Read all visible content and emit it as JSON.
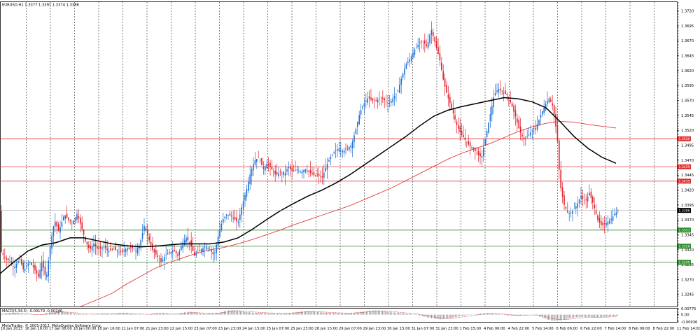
{
  "header": {
    "symbol_info": "EURUSD,H1  1.3377 1.3391 1.3374 1.3386",
    "indicator_info": "MACD(5,34,5) -0.00179 -0.00246",
    "copyright": "MetaTrader, © 2001-2013, MetaQuotes Software Corp."
  },
  "colors": {
    "bull": "#1e6fd6",
    "bear": "#e0202a",
    "ma_slow": "#e33b3b",
    "ma_fast": "#000000",
    "resistance": "#e03030",
    "support": "#2e8a2e",
    "grid": "#000000",
    "price_tag": "#000000",
    "macd_bar": "#555555",
    "macd_signal": "#e03030"
  },
  "price_axis": {
    "min": 1.3225,
    "max": 1.3735,
    "ticks": [
      "1.3720",
      "1.3695",
      "1.3670",
      "1.3645",
      "1.3620",
      "1.3595",
      "1.3570",
      "1.3545",
      "1.3520",
      "1.3495",
      "1.3470",
      "1.3445",
      "1.3420",
      "1.3395",
      "1.3370",
      "1.3345",
      "1.3320",
      "1.3295",
      "1.3270",
      "1.3245"
    ],
    "tick_values": [
      1.372,
      1.3695,
      1.367,
      1.3645,
      1.362,
      1.3595,
      1.357,
      1.3545,
      1.352,
      1.3495,
      1.347,
      1.3445,
      1.342,
      1.3395,
      1.337,
      1.3345,
      1.332,
      1.3295,
      1.327,
      1.3245
    ],
    "current_price": "1.3386",
    "current_value": 1.3386
  },
  "horizontal_levels": [
    {
      "label": "1.3506",
      "value": 1.3506,
      "kind": "resistance"
    },
    {
      "label": "1.3459",
      "value": 1.3459,
      "kind": "resistance"
    },
    {
      "label": "1.3435",
      "value": 1.3435,
      "kind": "resistance"
    },
    {
      "label": "1.3353",
      "value": 1.3353,
      "kind": "support"
    },
    {
      "label": "1.3326",
      "value": 1.3326,
      "kind": "support"
    },
    {
      "label": "1.3299",
      "value": 1.3299,
      "kind": "support"
    }
  ],
  "macd_axis": {
    "ticks": [
      "0.00775",
      "0.00",
      "-0.00936"
    ],
    "tick_values": [
      0.00775,
      0.0,
      -0.00936
    ]
  },
  "time_axis": {
    "labels": [
      "16 Jan 2013",
      "16 Jan 16:00",
      "17 Jan 08:00",
      "18 Jan 00:00",
      "18 Jan 16:00",
      "21 Jan 07:00",
      "21 Jan 23:00",
      "22 Jan 15:00",
      "23 Jan 07:00",
      "23 Jan 23:00",
      "24 Jan 15:00",
      "25 Jan 07:00",
      "25 Jan 23:00",
      "28 Jan 15:00",
      "29 Jan 07:00",
      "29 Jan 23:00",
      "30 Jan 15:00",
      "31 Jan 07:00",
      "31 Jan 23:00",
      "1 Feb 15:00",
      "4 Feb 06:00",
      "4 Feb 22:00",
      "5 Feb 14:00",
      "6 Feb 06:00",
      "6 Feb 22:00",
      "7 Feb 14:00",
      "8 Feb 06:00",
      "8 Feb 22:00",
      "11 Feb 14:00"
    ]
  },
  "chart_data": {
    "type": "candlestick",
    "title": "EURUSD,H1",
    "ylim": [
      1.3225,
      1.3735
    ],
    "price_points": [
      [
        0,
        1.332
      ],
      [
        8,
        1.3305
      ],
      [
        14,
        1.33
      ],
      [
        20,
        1.329
      ],
      [
        28,
        1.3305
      ],
      [
        34,
        1.3285
      ],
      [
        42,
        1.33
      ],
      [
        48,
        1.329
      ],
      [
        55,
        1.3275
      ],
      [
        60,
        1.33
      ],
      [
        66,
        1.327
      ],
      [
        72,
        1.333
      ],
      [
        78,
        1.337
      ],
      [
        84,
        1.335
      ],
      [
        92,
        1.338
      ],
      [
        98,
        1.337
      ],
      [
        104,
        1.3365
      ],
      [
        110,
        1.338
      ],
      [
        116,
        1.336
      ],
      [
        122,
        1.3335
      ],
      [
        128,
        1.332
      ],
      [
        134,
        1.333
      ],
      [
        140,
        1.332
      ],
      [
        148,
        1.3325
      ],
      [
        155,
        1.3318
      ],
      [
        162,
        1.3322
      ],
      [
        170,
        1.3315
      ],
      [
        178,
        1.332
      ],
      [
        186,
        1.3325
      ],
      [
        194,
        1.3318
      ],
      [
        200,
        1.333
      ],
      [
        206,
        1.336
      ],
      [
        212,
        1.334
      ],
      [
        218,
        1.332
      ],
      [
        224,
        1.331
      ],
      [
        230,
        1.33
      ],
      [
        236,
        1.331
      ],
      [
        242,
        1.3315
      ],
      [
        248,
        1.332
      ],
      [
        254,
        1.331
      ],
      [
        260,
        1.333
      ],
      [
        266,
        1.334
      ],
      [
        272,
        1.333
      ],
      [
        278,
        1.331
      ],
      [
        286,
        1.332
      ],
      [
        294,
        1.3325
      ],
      [
        300,
        1.332
      ],
      [
        306,
        1.331
      ],
      [
        312,
        1.3345
      ],
      [
        318,
        1.337
      ],
      [
        324,
        1.338
      ],
      [
        332,
        1.3375
      ],
      [
        340,
        1.3365
      ],
      [
        346,
        1.3395
      ],
      [
        352,
        1.342
      ],
      [
        358,
        1.345
      ],
      [
        364,
        1.347
      ],
      [
        370,
        1.3475
      ],
      [
        376,
        1.3455
      ],
      [
        382,
        1.3465
      ],
      [
        388,
        1.3455
      ],
      [
        394,
        1.3445
      ],
      [
        400,
        1.345
      ],
      [
        406,
        1.3445
      ],
      [
        412,
        1.346
      ],
      [
        418,
        1.345
      ],
      [
        424,
        1.3455
      ],
      [
        430,
        1.345
      ],
      [
        436,
        1.3455
      ],
      [
        442,
        1.345
      ],
      [
        448,
        1.3445
      ],
      [
        454,
        1.3445
      ],
      [
        460,
        1.344
      ],
      [
        466,
        1.346
      ],
      [
        472,
        1.3475
      ],
      [
        478,
        1.3485
      ],
      [
        484,
        1.349
      ],
      [
        490,
        1.3485
      ],
      [
        496,
        1.349
      ],
      [
        502,
        1.3495
      ],
      [
        508,
        1.352
      ],
      [
        514,
        1.355
      ],
      [
        520,
        1.3565
      ],
      [
        526,
        1.3575
      ],
      [
        532,
        1.357
      ],
      [
        538,
        1.357
      ],
      [
        544,
        1.3575
      ],
      [
        550,
        1.357
      ],
      [
        556,
        1.3565
      ],
      [
        562,
        1.3575
      ],
      [
        568,
        1.3585
      ],
      [
        574,
        1.361
      ],
      [
        580,
        1.363
      ],
      [
        586,
        1.364
      ],
      [
        592,
        1.3655
      ],
      [
        598,
        1.3665
      ],
      [
        604,
        1.367
      ],
      [
        610,
        1.366
      ],
      [
        616,
        1.369
      ],
      [
        622,
        1.3665
      ],
      [
        628,
        1.364
      ],
      [
        634,
        1.36
      ],
      [
        640,
        1.3575
      ],
      [
        646,
        1.3555
      ],
      [
        652,
        1.353
      ],
      [
        658,
        1.3515
      ],
      [
        664,
        1.3505
      ],
      [
        670,
        1.3495
      ],
      [
        676,
        1.349
      ],
      [
        682,
        1.348
      ],
      [
        688,
        1.3475
      ],
      [
        694,
        1.351
      ],
      [
        700,
        1.3545
      ],
      [
        706,
        1.358
      ],
      [
        712,
        1.359
      ],
      [
        718,
        1.3585
      ],
      [
        724,
        1.358
      ],
      [
        730,
        1.3565
      ],
      [
        736,
        1.3545
      ],
      [
        742,
        1.352
      ],
      [
        748,
        1.3505
      ],
      [
        754,
        1.351
      ],
      [
        760,
        1.352
      ],
      [
        766,
        1.3525
      ],
      [
        772,
        1.3545
      ],
      [
        778,
        1.356
      ],
      [
        784,
        1.3575
      ],
      [
        790,
        1.356
      ],
      [
        796,
        1.351
      ],
      [
        800,
        1.343
      ],
      [
        806,
        1.3395
      ],
      [
        812,
        1.338
      ],
      [
        818,
        1.3385
      ],
      [
        824,
        1.3395
      ],
      [
        830,
        1.341
      ],
      [
        836,
        1.34
      ],
      [
        842,
        1.3415
      ],
      [
        848,
        1.3395
      ],
      [
        854,
        1.337
      ],
      [
        860,
        1.336
      ],
      [
        866,
        1.3365
      ],
      [
        872,
        1.337
      ],
      [
        878,
        1.338
      ],
      [
        884,
        1.3386
      ]
    ],
    "ma_fast_points": [
      [
        0,
        1.328
      ],
      [
        20,
        1.33
      ],
      [
        40,
        1.3318
      ],
      [
        60,
        1.3328
      ],
      [
        80,
        1.3332
      ],
      [
        100,
        1.334
      ],
      [
        120,
        1.334
      ],
      [
        140,
        1.3335
      ],
      [
        160,
        1.333
      ],
      [
        180,
        1.3327
      ],
      [
        200,
        1.3325
      ],
      [
        220,
        1.3326
      ],
      [
        240,
        1.3328
      ],
      [
        260,
        1.333
      ],
      [
        280,
        1.333
      ],
      [
        300,
        1.333
      ],
      [
        320,
        1.3333
      ],
      [
        340,
        1.334
      ],
      [
        360,
        1.3354
      ],
      [
        380,
        1.337
      ],
      [
        400,
        1.3385
      ],
      [
        420,
        1.3398
      ],
      [
        440,
        1.341
      ],
      [
        460,
        1.342
      ],
      [
        480,
        1.3432
      ],
      [
        500,
        1.3446
      ],
      [
        520,
        1.3462
      ],
      [
        540,
        1.3478
      ],
      [
        560,
        1.3494
      ],
      [
        580,
        1.351
      ],
      [
        600,
        1.3528
      ],
      [
        620,
        1.3544
      ],
      [
        640,
        1.3554
      ],
      [
        660,
        1.356
      ],
      [
        680,
        1.3565
      ],
      [
        700,
        1.357
      ],
      [
        720,
        1.3575
      ],
      [
        740,
        1.3573
      ],
      [
        760,
        1.3568
      ],
      [
        780,
        1.3558
      ],
      [
        800,
        1.3535
      ],
      [
        820,
        1.351
      ],
      [
        840,
        1.349
      ],
      [
        860,
        1.3475
      ],
      [
        880,
        1.3465
      ]
    ],
    "ma_slow_points": [
      [
        115,
        1.3225
      ],
      [
        140,
        1.3237
      ],
      [
        160,
        1.3247
      ],
      [
        180,
        1.3262
      ],
      [
        200,
        1.3275
      ],
      [
        220,
        1.3288
      ],
      [
        240,
        1.3298
      ],
      [
        260,
        1.3306
      ],
      [
        280,
        1.3314
      ],
      [
        300,
        1.332
      ],
      [
        320,
        1.3324
      ],
      [
        340,
        1.333
      ],
      [
        360,
        1.3337
      ],
      [
        380,
        1.3345
      ],
      [
        400,
        1.3353
      ],
      [
        420,
        1.3362
      ],
      [
        440,
        1.337
      ],
      [
        460,
        1.3378
      ],
      [
        480,
        1.3386
      ],
      [
        500,
        1.3394
      ],
      [
        520,
        1.3404
      ],
      [
        540,
        1.3414
      ],
      [
        560,
        1.3424
      ],
      [
        580,
        1.3436
      ],
      [
        600,
        1.3448
      ],
      [
        620,
        1.346
      ],
      [
        640,
        1.3472
      ],
      [
        660,
        1.3482
      ],
      [
        680,
        1.349
      ],
      [
        700,
        1.3498
      ],
      [
        720,
        1.3508
      ],
      [
        740,
        1.3518
      ],
      [
        760,
        1.3526
      ],
      [
        780,
        1.3532
      ],
      [
        800,
        1.3535
      ],
      [
        820,
        1.3534
      ],
      [
        840,
        1.353
      ],
      [
        860,
        1.3527
      ],
      [
        880,
        1.3524
      ]
    ],
    "macd_bars": [
      0.001,
      0.0016,
      0.002,
      0.0022,
      0.0014,
      0.0008,
      0.0004,
      -0.0002,
      -0.0006,
      -0.0004,
      0.0006,
      0.0018,
      0.003,
      0.0038,
      0.0044,
      0.004,
      0.0032,
      0.0024,
      0.0016,
      0.001,
      0.0006,
      0.0004,
      0.0002,
      0.0004,
      0.0008,
      0.0012,
      0.001,
      0.0008,
      0.0012,
      0.0018,
      0.0024,
      0.002,
      0.0012,
      0.0006,
      0.0004,
      0.0002,
      0.0,
      0.0006,
      0.0014,
      0.002,
      0.0018,
      0.0012,
      0.0006,
      0.0004,
      0.001,
      0.0022,
      0.003,
      0.0036,
      0.003,
      0.0022,
      0.0016,
      0.0012,
      0.0014,
      0.0018,
      0.0024,
      0.0034,
      0.0046,
      0.0054,
      0.0058,
      0.0054,
      0.0046,
      0.0036,
      0.003,
      0.0026,
      0.0024,
      0.0022,
      0.002,
      0.0018,
      0.0016,
      0.0014,
      0.0012,
      0.0016,
      0.0022,
      0.0028,
      0.0034,
      0.004,
      0.0044,
      0.0046,
      0.0042,
      0.0036,
      0.003,
      0.0026,
      0.0024,
      0.0022,
      0.002,
      0.0018,
      0.0018,
      0.002,
      0.0024,
      0.003,
      0.0036,
      0.0042,
      0.0048,
      0.0052,
      0.0054,
      0.005,
      0.0044,
      0.0036,
      0.0028,
      0.0022,
      0.0018,
      0.0014,
      0.001,
      0.0004,
      -0.0004,
      -0.0014,
      -0.0026,
      -0.0038,
      -0.0048,
      -0.0056,
      -0.006,
      -0.0056,
      -0.0048,
      -0.0038,
      -0.0028,
      -0.0018,
      -0.001,
      -0.0004,
      0.0002,
      0.0008,
      0.0014,
      0.0018,
      0.002,
      0.0016,
      0.001,
      0.0004,
      -0.0004,
      -0.001,
      -0.0014,
      -0.0016,
      -0.0012,
      -0.0006,
      -0.0002,
      0.0,
      -0.0008,
      -0.0026,
      -0.0048,
      -0.0066,
      -0.0076,
      -0.0078,
      -0.0072,
      -0.0062,
      -0.005,
      -0.004,
      -0.0034,
      -0.003,
      -0.0028,
      -0.003,
      -0.0034,
      -0.0036,
      -0.0034,
      -0.003,
      -0.0026,
      -0.0022,
      -0.0018
    ]
  }
}
